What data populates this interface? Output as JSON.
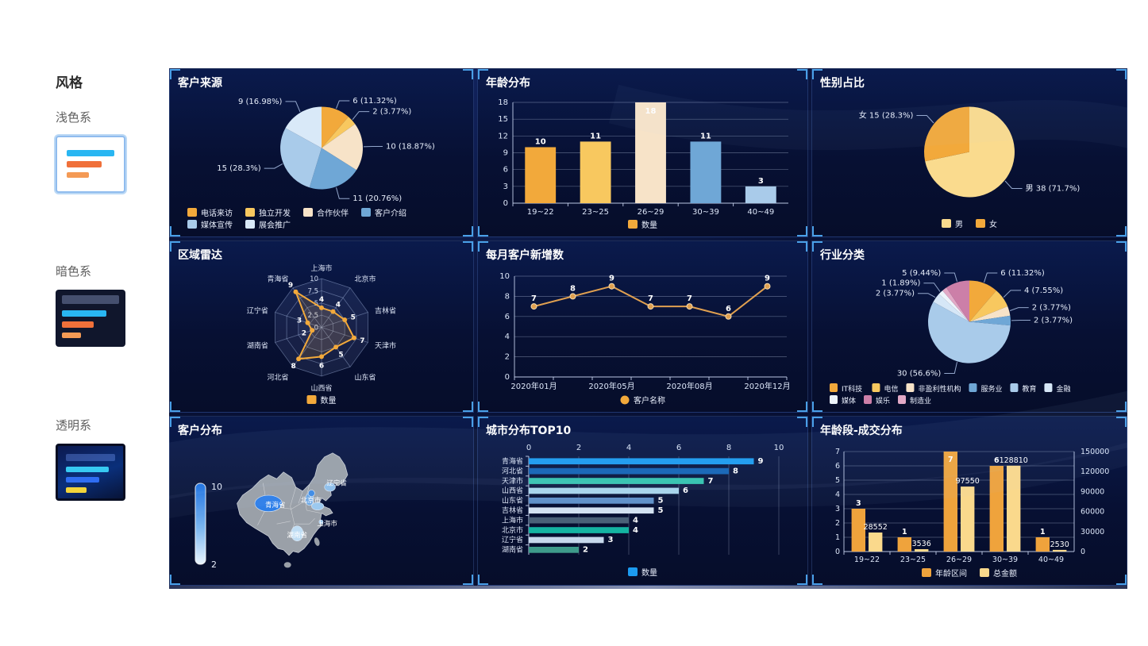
{
  "sidebar": {
    "title": "风格",
    "options": [
      {
        "label": "浅色系",
        "selected": true
      },
      {
        "label": "暗色系",
        "selected": false
      },
      {
        "label": "透明系",
        "selected": false
      }
    ]
  },
  "chart_data": [
    {
      "id": "customer-source",
      "type": "pie",
      "title": "客户来源",
      "slices": [
        {
          "label": "电话来访",
          "value": 6,
          "pct": "11.32%",
          "color": "#F2A93B"
        },
        {
          "label": "独立开发",
          "value": 2,
          "pct": "3.77%",
          "color": "#F8C85F"
        },
        {
          "label": "合作伙伴",
          "value": 10,
          "pct": "18.87%",
          "color": "#F7E3C8"
        },
        {
          "label": "客户介绍",
          "value": 11,
          "pct": "20.76%",
          "color": "#6FA7D6"
        },
        {
          "label": "媒体宣传",
          "value": 15,
          "pct": "28.3%",
          "color": "#A9CBEA"
        },
        {
          "label": "展会推广",
          "value": 9,
          "pct": "16.98%",
          "color": "#D9E9F8"
        }
      ],
      "legend": [
        {
          "label": "电话来访",
          "color": "#F2A93B"
        },
        {
          "label": "独立开发",
          "color": "#F8C85F"
        },
        {
          "label": "合作伙伴",
          "color": "#F7E3C8"
        },
        {
          "label": "客户介绍",
          "color": "#6FA7D6"
        },
        {
          "label": "媒体宣传",
          "color": "#A9CBEA"
        },
        {
          "label": "展会推广",
          "color": "#D9E9F8"
        }
      ]
    },
    {
      "id": "age-distribution",
      "type": "bar",
      "title": "年龄分布",
      "categories": [
        "19~22",
        "23~25",
        "26~29",
        "30~39",
        "40~49"
      ],
      "values": [
        10,
        11,
        18,
        11,
        3
      ],
      "bar_colors": [
        "#F2A93B",
        "#F8C85F",
        "#F7E3C8",
        "#6FA7D6",
        "#A9CBEA"
      ],
      "ymax": 18,
      "ytick_step": 3,
      "legend": [
        {
          "label": "数量",
          "color": "#F2A93B"
        }
      ]
    },
    {
      "id": "gender-ratio",
      "type": "pie",
      "title": "性别占比",
      "label_with_name": true,
      "slices": [
        {
          "label": "男",
          "value": 38,
          "pct": "71.7%",
          "color": "#FADB8E"
        },
        {
          "label": "女",
          "value": 15,
          "pct": "28.3%",
          "color": "#F2A93B"
        }
      ],
      "legend": [
        {
          "label": "男",
          "color": "#FADB8E"
        },
        {
          "label": "女",
          "color": "#F2A93B"
        }
      ]
    },
    {
      "id": "region-radar",
      "type": "radar",
      "title": "区域雷达",
      "axes": [
        "上海市",
        "北京市",
        "吉林省",
        "天津市",
        "山东省",
        "山西省",
        "河北省",
        "湖南省",
        "辽宁省",
        "青海省"
      ],
      "values": [
        4,
        4,
        5,
        7,
        5,
        6,
        8,
        2,
        3,
        9
      ],
      "max": 10,
      "ring_labels": [
        "0",
        "2.5",
        "5",
        "7.5",
        "10"
      ],
      "color": "#F2A93B",
      "legend": [
        {
          "label": "数量",
          "color": "#F2A93B"
        }
      ]
    },
    {
      "id": "monthly-new-customers",
      "type": "line",
      "title": "每月客户新增数",
      "values": [
        7,
        8,
        9,
        7,
        7,
        6,
        9
      ],
      "x_tick_labels": [
        {
          "index": 0,
          "label": "2020年01月"
        },
        {
          "index": 2,
          "label": "2020年05月"
        },
        {
          "index": 4,
          "label": "2020年08月"
        },
        {
          "index": 6,
          "label": "2020年12月"
        }
      ],
      "ymax": 10,
      "ytick_step": 2,
      "color": "#E0A050",
      "legend": [
        {
          "label": "客户名称",
          "color": "#F2A93B"
        }
      ]
    },
    {
      "id": "industry-category",
      "type": "pie",
      "title": "行业分类",
      "slices": [
        {
          "label": "IT科技",
          "value": 6,
          "pct": "11.32%",
          "color": "#F2A93B"
        },
        {
          "label": "电信",
          "value": 4,
          "pct": "7.55%",
          "color": "#F8C85F"
        },
        {
          "label": "非盈利性机构",
          "value": 2,
          "pct": "3.77%",
          "color": "#F7E3C8"
        },
        {
          "label": "服务业",
          "value": 2,
          "pct": "3.77%",
          "color": "#6FA7D6"
        },
        {
          "label": "教育",
          "value": 30,
          "pct": "56.6%",
          "color": "#A9CBEA"
        },
        {
          "label": "金融",
          "value": 2,
          "pct": "3.77%",
          "color": "#D6E7F7"
        },
        {
          "label": "媒体",
          "value": 1,
          "pct": "1.89%",
          "color": "#EDF4FB"
        },
        {
          "label": "制造业",
          "value": 1,
          "pct": "1.89%",
          "color": "#E2A9C6",
          "hide_label": true
        },
        {
          "label": "娱乐",
          "value": 5,
          "pct": "9.44%",
          "color": "#CC7FA8"
        }
      ],
      "legend": [
        {
          "label": "IT科技",
          "color": "#F2A93B"
        },
        {
          "label": "电信",
          "color": "#F8C85F"
        },
        {
          "label": "非盈利性机构",
          "color": "#F7E3C8"
        },
        {
          "label": "服务业",
          "color": "#6FA7D6"
        },
        {
          "label": "教育",
          "color": "#A9CBEA"
        },
        {
          "label": "金融",
          "color": "#D6E7F7"
        },
        {
          "label": "媒体",
          "color": "#EDF4FB"
        },
        {
          "label": "娱乐",
          "color": "#CC7FA8"
        },
        {
          "label": "制造业",
          "color": "#E2A9C6"
        }
      ]
    },
    {
      "id": "customer-map",
      "type": "map",
      "title": "客户分布",
      "visual_max": "10",
      "visual_min": "2",
      "labeled_provinces": [
        "青海省",
        "北京市",
        "辽宁省",
        "上海市",
        "湖南省"
      ],
      "highlight": [
        {
          "name": "青海省",
          "color": "#2E7FE8"
        },
        {
          "name": "河北省",
          "color": "#6FA9E4"
        },
        {
          "name": "北京市",
          "color": "#3E8BE5"
        },
        {
          "name": "山东省",
          "color": "#9CC9EF"
        },
        {
          "name": "辽宁省",
          "color": "#8FC0EC"
        },
        {
          "name": "湖南省",
          "color": "#BFDDF4"
        },
        {
          "name": "上海市",
          "color": "#9CC9EF"
        }
      ]
    },
    {
      "id": "city-top10",
      "type": "hbar",
      "title": "城市分布TOP10",
      "categories": [
        "青海省",
        "河北省",
        "天津市",
        "山西省",
        "山东省",
        "吉林省",
        "上海市",
        "北京市",
        "辽宁省",
        "湖南省"
      ],
      "values": [
        9,
        8,
        7,
        6,
        5,
        5,
        4,
        4,
        3,
        2
      ],
      "bar_colors": [
        "#1C9BF0",
        "#1463B4",
        "#33C3AE",
        "#A9D6EC",
        "#5E90C8",
        "#D3E2F2",
        "#4A6178",
        "#14B4A2",
        "#C6D8EC",
        "#3E9B8B"
      ],
      "xmax": 10,
      "xtick_step": 2,
      "legend": [
        {
          "label": "数量",
          "color": "#1C9BF0"
        }
      ]
    },
    {
      "id": "age-deal",
      "type": "dualbar",
      "title": "年龄段-成交分布",
      "categories": [
        "19~22",
        "23~25",
        "26~29",
        "30~39",
        "40~49"
      ],
      "series": [
        {
          "name": "年龄区间",
          "values": [
            3,
            1,
            7,
            6,
            1
          ],
          "color": "#EFA33C"
        },
        {
          "name": "总金额",
          "values": [
            28552,
            3536,
            97550,
            128810,
            2530
          ],
          "color": "#FAD98C"
        }
      ],
      "left_max": 7,
      "left_step": 1,
      "right_max": 150000,
      "right_step": 30000
    }
  ]
}
